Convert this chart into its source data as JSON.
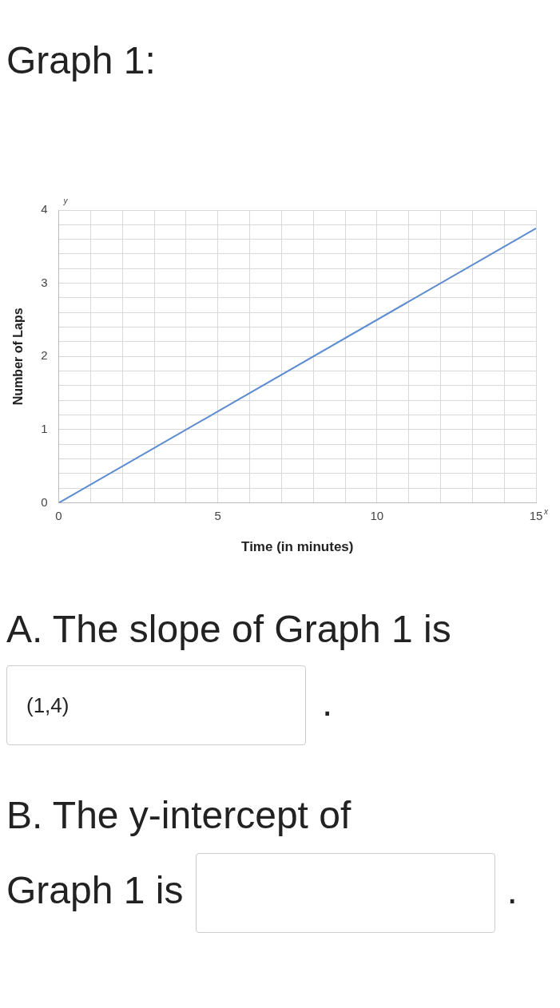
{
  "chart_data": {
    "type": "line",
    "title": "Graph 1:",
    "xlabel": "Time (in minutes)",
    "ylabel": "Number of Laps",
    "x": [
      0,
      15
    ],
    "series": [
      {
        "color": "#5b8bd0",
        "values": [
          0,
          3.75
        ]
      }
    ],
    "xlim": [
      0,
      15
    ],
    "xticks": [
      0,
      {
        "value": 1,
        "label": null
      },
      {
        "value": 2,
        "label": null
      },
      {
        "value": 3,
        "label": null
      },
      {
        "value": 4,
        "label": null
      },
      5,
      {
        "value": 6,
        "label": null
      },
      {
        "value": 7,
        "label": null
      },
      {
        "value": 8,
        "label": null
      },
      {
        "value": 9,
        "label": null
      },
      10,
      {
        "value": 11,
        "label": null
      },
      {
        "value": 12,
        "label": null
      },
      {
        "value": 13,
        "label": null
      },
      {
        "value": 14,
        "label": null
      },
      15
    ],
    "ylim": [
      0,
      4
    ],
    "yticks": [
      0,
      {
        "value": 0.2,
        "label": null
      },
      {
        "value": 0.4,
        "label": null
      },
      {
        "value": 0.6,
        "label": null
      },
      {
        "value": 0.8,
        "label": null
      },
      1,
      {
        "value": 1.2,
        "label": null
      },
      {
        "value": 1.4,
        "label": null
      },
      {
        "value": 1.6,
        "label": null
      },
      {
        "value": 1.8,
        "label": null
      },
      2,
      {
        "value": 2.2,
        "label": null
      },
      {
        "value": 2.4,
        "label": null
      },
      {
        "value": 2.6,
        "label": null
      },
      {
        "value": 2.8,
        "label": null
      },
      3,
      {
        "value": 3.2,
        "label": null
      },
      {
        "value": 3.4,
        "label": null
      },
      {
        "value": 3.6,
        "label": null
      },
      {
        "value": 3.8,
        "label": null
      },
      4
    ],
    "grid": true,
    "legend": false,
    "marker": "none",
    "line_style": "solid",
    "annotations": [
      "y",
      "x",
      "A. The slope of Graph 1 is",
      "(1,4)",
      ".",
      "B. The y-intercept of",
      "Graph 1 is",
      "."
    ]
  }
}
